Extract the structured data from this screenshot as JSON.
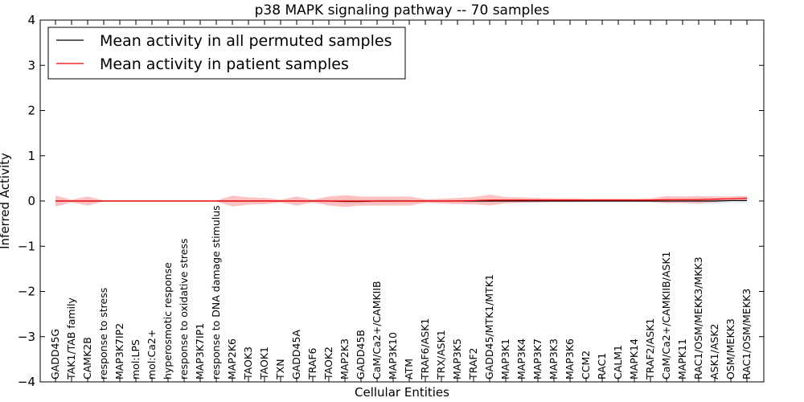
{
  "chart_data": {
    "type": "line",
    "title": "p38 MAPK signaling pathway -- 70 samples",
    "xlabel": "Cellular Entities",
    "ylabel": "Inferred Activity",
    "ylim": [
      -4,
      4
    ],
    "yticks": [
      "4",
      "3",
      "2",
      "1",
      "0",
      "−1",
      "−2",
      "−3",
      "−4"
    ],
    "ytick_values": [
      4,
      3,
      2,
      1,
      0,
      -1,
      -2,
      -3,
      -4
    ],
    "legend_position": "top-left",
    "categories": [
      "GADD45G",
      "TAK1/TAB family",
      "CAMK2B",
      "response to stress",
      "MAP3K7IP2",
      "mol:LPS",
      "mol:Ca2+",
      "hyperosmotic response",
      "response to oxidative stress",
      "MAP3K7IP1",
      "response to DNA damage stimulus",
      "MAP2K6",
      "TAOK3",
      "TAOK1",
      "TXN",
      "GADD45A",
      "TRAF6",
      "TAOK2",
      "MAP2K3",
      "GADD45B",
      "CaM/Ca2+/CAMKIIB",
      "MAP3K10",
      "ATM",
      "TRAF6/ASK1",
      "TRX/ASK1",
      "MAP3K5",
      "TRAF2",
      "GADD45/MTK1/MTK1",
      "MAP3K1",
      "MAP3K4",
      "MAP3K7",
      "MAP3K3",
      "MAP3K6",
      "CCM2",
      "RAC1",
      "CALM1",
      "MAPK14",
      "TRAF2/ASK1",
      "CaM/Ca2+/CAMKIIB/ASK1",
      "MAPK11",
      "RAC1/OSM/MEKK3/MKK3",
      "ASK1/ASK2",
      "OSM/MEKK3",
      "RAC1/OSM/MEKK3"
    ],
    "series": [
      {
        "name": "Mean activity in all permuted samples",
        "color": "#000000",
        "band_color": "#c8c8d8",
        "values": [
          0,
          0,
          0,
          0,
          0,
          0,
          0,
          0,
          0,
          0,
          0,
          0,
          0,
          0,
          0,
          0,
          0,
          0,
          -0.01,
          -0.01,
          0,
          0,
          0,
          0,
          0,
          0,
          0,
          0,
          0,
          0,
          0,
          0,
          0,
          0,
          0,
          0,
          0,
          0,
          0,
          0,
          0,
          0,
          0.01,
          0.01
        ],
        "band": [
          0.01,
          0.01,
          0.01,
          0.01,
          0.01,
          0.01,
          0.01,
          0.01,
          0.01,
          0.01,
          0.01,
          0.02,
          0.02,
          0.02,
          0.02,
          0.02,
          0.03,
          0.04,
          0.06,
          0.05,
          0.04,
          0.04,
          0.03,
          0.03,
          0.03,
          0.03,
          0.03,
          0.03,
          0.03,
          0.03,
          0.03,
          0.03,
          0.03,
          0.03,
          0.03,
          0.03,
          0.03,
          0.03,
          0.04,
          0.05,
          0.07,
          0.06,
          0.05,
          0.05
        ]
      },
      {
        "name": "Mean activity in patient samples",
        "color": "#ff0000",
        "band_color": "#ff9999",
        "values": [
          0,
          0,
          0,
          0,
          0,
          0,
          0,
          0,
          0,
          0,
          0,
          0,
          0,
          0,
          0,
          0,
          0,
          0,
          0,
          0,
          0,
          0,
          0,
          0,
          0,
          0,
          0.01,
          0.02,
          0.02,
          0.02,
          0.02,
          0.02,
          0.02,
          0.02,
          0.02,
          0.02,
          0.02,
          0.02,
          0.03,
          0.03,
          0.03,
          0.04,
          0.05,
          0.06
        ],
        "band": [
          0.12,
          0.03,
          0.1,
          0.01,
          0.01,
          0.01,
          0.01,
          0.01,
          0.01,
          0.01,
          0.01,
          0.12,
          0.08,
          0.07,
          0.03,
          0.1,
          0.03,
          0.1,
          0.13,
          0.1,
          0.1,
          0.1,
          0.1,
          0.04,
          0.05,
          0.07,
          0.08,
          0.12,
          0.07,
          0.06,
          0.05,
          0.04,
          0.04,
          0.03,
          0.03,
          0.03,
          0.03,
          0.04,
          0.08,
          0.07,
          0.08,
          0.06,
          0.05,
          0.05
        ]
      }
    ]
  }
}
